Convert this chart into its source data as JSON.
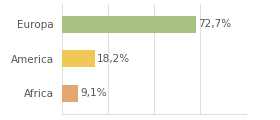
{
  "categories": [
    "Europa",
    "America",
    "Africa"
  ],
  "values": [
    72.7,
    18.2,
    9.1
  ],
  "labels": [
    "72,7%",
    "18,2%",
    "9,1%"
  ],
  "bar_colors": [
    "#a8c080",
    "#f0c857",
    "#e0a870"
  ],
  "background_color": "#ffffff",
  "xlim": [
    0,
    100
  ],
  "bar_height": 0.5,
  "label_fontsize": 7.5,
  "tick_fontsize": 7.5,
  "grid_color": "#dddddd",
  "text_color": "#555555"
}
